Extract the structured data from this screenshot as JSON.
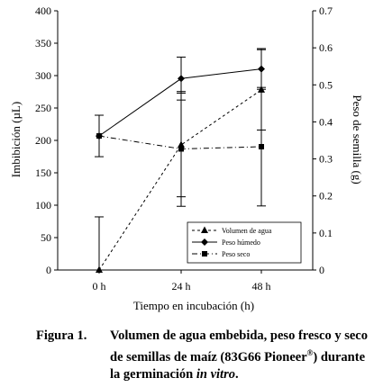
{
  "chart_data": {
    "type": "line",
    "categories": [
      "0 h",
      "24 h",
      "48 h"
    ],
    "xlabel": "Tiempo en incubación (h)",
    "ylabel_left": "Imbibición (µL)",
    "ylabel_right": "Peso de semilla (g)",
    "ylim_left": [
      0,
      400
    ],
    "yticks_left": [
      "0",
      "50",
      "100",
      "150",
      "200",
      "250",
      "300",
      "350",
      "400"
    ],
    "ylim_right": [
      0,
      0.7
    ],
    "yticks_right": [
      "0",
      "0.1",
      "0.2",
      "0.3",
      "0.4",
      "0.5",
      "0.6",
      "0.7"
    ],
    "grid": false,
    "legend_position": "lower-right",
    "series": [
      {
        "name": "Volumen de agua",
        "axis": "left",
        "marker": "triangle",
        "line_style": "dashed",
        "values": [
          0,
          193,
          278
        ],
        "error": [
          82,
          80,
          62
        ]
      },
      {
        "name": "Peso húmedo",
        "axis": "right",
        "marker": "diamond",
        "line_style": "solid",
        "values": [
          0.362,
          0.517,
          0.543
        ],
        "error": [
          0.056,
          0.058,
          0.055
        ]
      },
      {
        "name": "Peso seco",
        "axis": "right",
        "marker": "square",
        "line_style": "dashdot",
        "values": [
          0.362,
          0.327,
          0.333
        ],
        "error": [
          0,
          0.155,
          0.16
        ]
      }
    ]
  },
  "caption": {
    "prefix": "Figura 1.",
    "line1": "Volumen de agua embebida, peso fresco y seco",
    "line2_before": "de semillas de maíz (83G66 Pioneer",
    "line2_sup": "®",
    "line2_after": ") durante",
    "line3_before": "la germinación ",
    "line3_italic": "in vitro",
    "line3_after": "."
  }
}
